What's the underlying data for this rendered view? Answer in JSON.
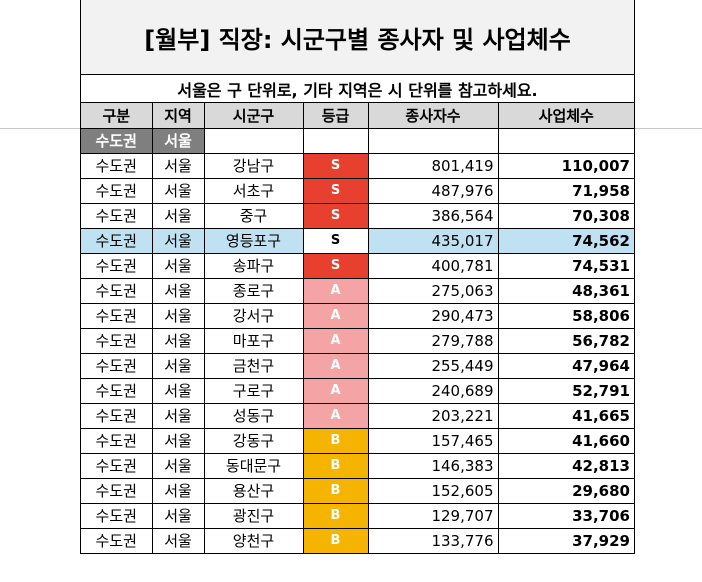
{
  "title": "[월부] 직장: 시군구별 종사자 및 사업체수",
  "subtitle": "서울은 구 단위로, 기타 지역은 시 단위를 참고하세요.",
  "headers": [
    "구분",
    "지역",
    "시군구",
    "등급",
    "종사자수",
    "사업체수"
  ],
  "group_row": {
    "region_group": "수도권",
    "region": "서울"
  },
  "colors": {
    "S": "#e8402f",
    "A": "#f4a4a4",
    "B": "#f4b400",
    "highlight": "#bfe1f2",
    "header": "#d9d9d9",
    "group": "#7f7f7f"
  },
  "rows": [
    {
      "group": "수도권",
      "region": "서울",
      "district": "강남구",
      "grade": "S",
      "workers": "801,419",
      "businesses": "110,007"
    },
    {
      "group": "수도권",
      "region": "서울",
      "district": "서초구",
      "grade": "S",
      "workers": "487,976",
      "businesses": "71,958"
    },
    {
      "group": "수도권",
      "region": "서울",
      "district": "중구",
      "grade": "S",
      "workers": "386,564",
      "businesses": "70,308"
    },
    {
      "group": "수도권",
      "region": "서울",
      "district": "영등포구",
      "grade": "S",
      "workers": "435,017",
      "businesses": "74,562"
    },
    {
      "group": "수도권",
      "region": "서울",
      "district": "송파구",
      "grade": "S",
      "workers": "400,781",
      "businesses": "74,531"
    },
    {
      "group": "수도권",
      "region": "서울",
      "district": "종로구",
      "grade": "A",
      "workers": "275,063",
      "businesses": "48,361"
    },
    {
      "group": "수도권",
      "region": "서울",
      "district": "강서구",
      "grade": "A",
      "workers": "290,473",
      "businesses": "58,806"
    },
    {
      "group": "수도권",
      "region": "서울",
      "district": "마포구",
      "grade": "A",
      "workers": "279,788",
      "businesses": "56,782"
    },
    {
      "group": "수도권",
      "region": "서울",
      "district": "금천구",
      "grade": "A",
      "workers": "255,449",
      "businesses": "47,964"
    },
    {
      "group": "수도권",
      "region": "서울",
      "district": "구로구",
      "grade": "A",
      "workers": "240,689",
      "businesses": "52,791"
    },
    {
      "group": "수도권",
      "region": "서울",
      "district": "성동구",
      "grade": "A",
      "workers": "203,221",
      "businesses": "41,665"
    },
    {
      "group": "수도권",
      "region": "서울",
      "district": "강동구",
      "grade": "B",
      "workers": "157,465",
      "businesses": "41,660"
    },
    {
      "group": "수도권",
      "region": "서울",
      "district": "동대문구",
      "grade": "B",
      "workers": "146,383",
      "businesses": "42,813"
    },
    {
      "group": "수도권",
      "region": "서울",
      "district": "용산구",
      "grade": "B",
      "workers": "152,605",
      "businesses": "29,680"
    },
    {
      "group": "수도권",
      "region": "서울",
      "district": "광진구",
      "grade": "B",
      "workers": "129,707",
      "businesses": "33,706"
    },
    {
      "group": "수도권",
      "region": "서울",
      "district": "양천구",
      "grade": "B",
      "workers": "133,776",
      "businesses": "37,929"
    }
  ]
}
